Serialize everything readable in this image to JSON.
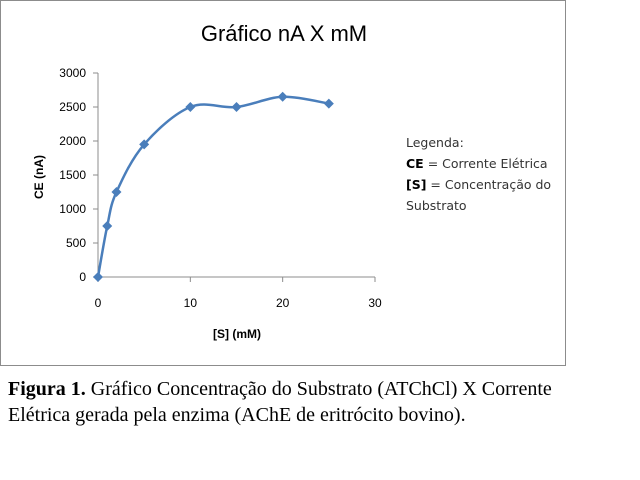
{
  "chart_data": {
    "type": "line",
    "title": "Gráfico nA X mM",
    "xlabel": "[S] (mM)",
    "ylabel": "CE (nA)",
    "xlim": [
      0,
      30
    ],
    "ylim": [
      0,
      3000
    ],
    "xticks": [
      0,
      10,
      20,
      30
    ],
    "yticks": [
      0,
      500,
      1000,
      1500,
      2000,
      2500,
      3000
    ],
    "grid": false,
    "series": [
      {
        "x": [
          0,
          1,
          2,
          5,
          10,
          15,
          20,
          25
        ],
        "y": [
          0,
          750,
          1250,
          1950,
          2500,
          2500,
          2650,
          2550
        ]
      }
    ],
    "color": "#4a7ebb"
  },
  "legend": {
    "heading": "Legenda:",
    "line1_bold": "CE",
    "line1_rest": " = Corrente Elétrica",
    "line2_bold": "[S]",
    "line2_rest": " = Concentração do",
    "line3": "Substrato"
  },
  "caption": {
    "label": "Figura 1.",
    "text": " Gráfico Concentração do Substrato (ATChCl) X Corrente Elétrica gerada pela enzima (AChE de eritrócito bovino)."
  }
}
